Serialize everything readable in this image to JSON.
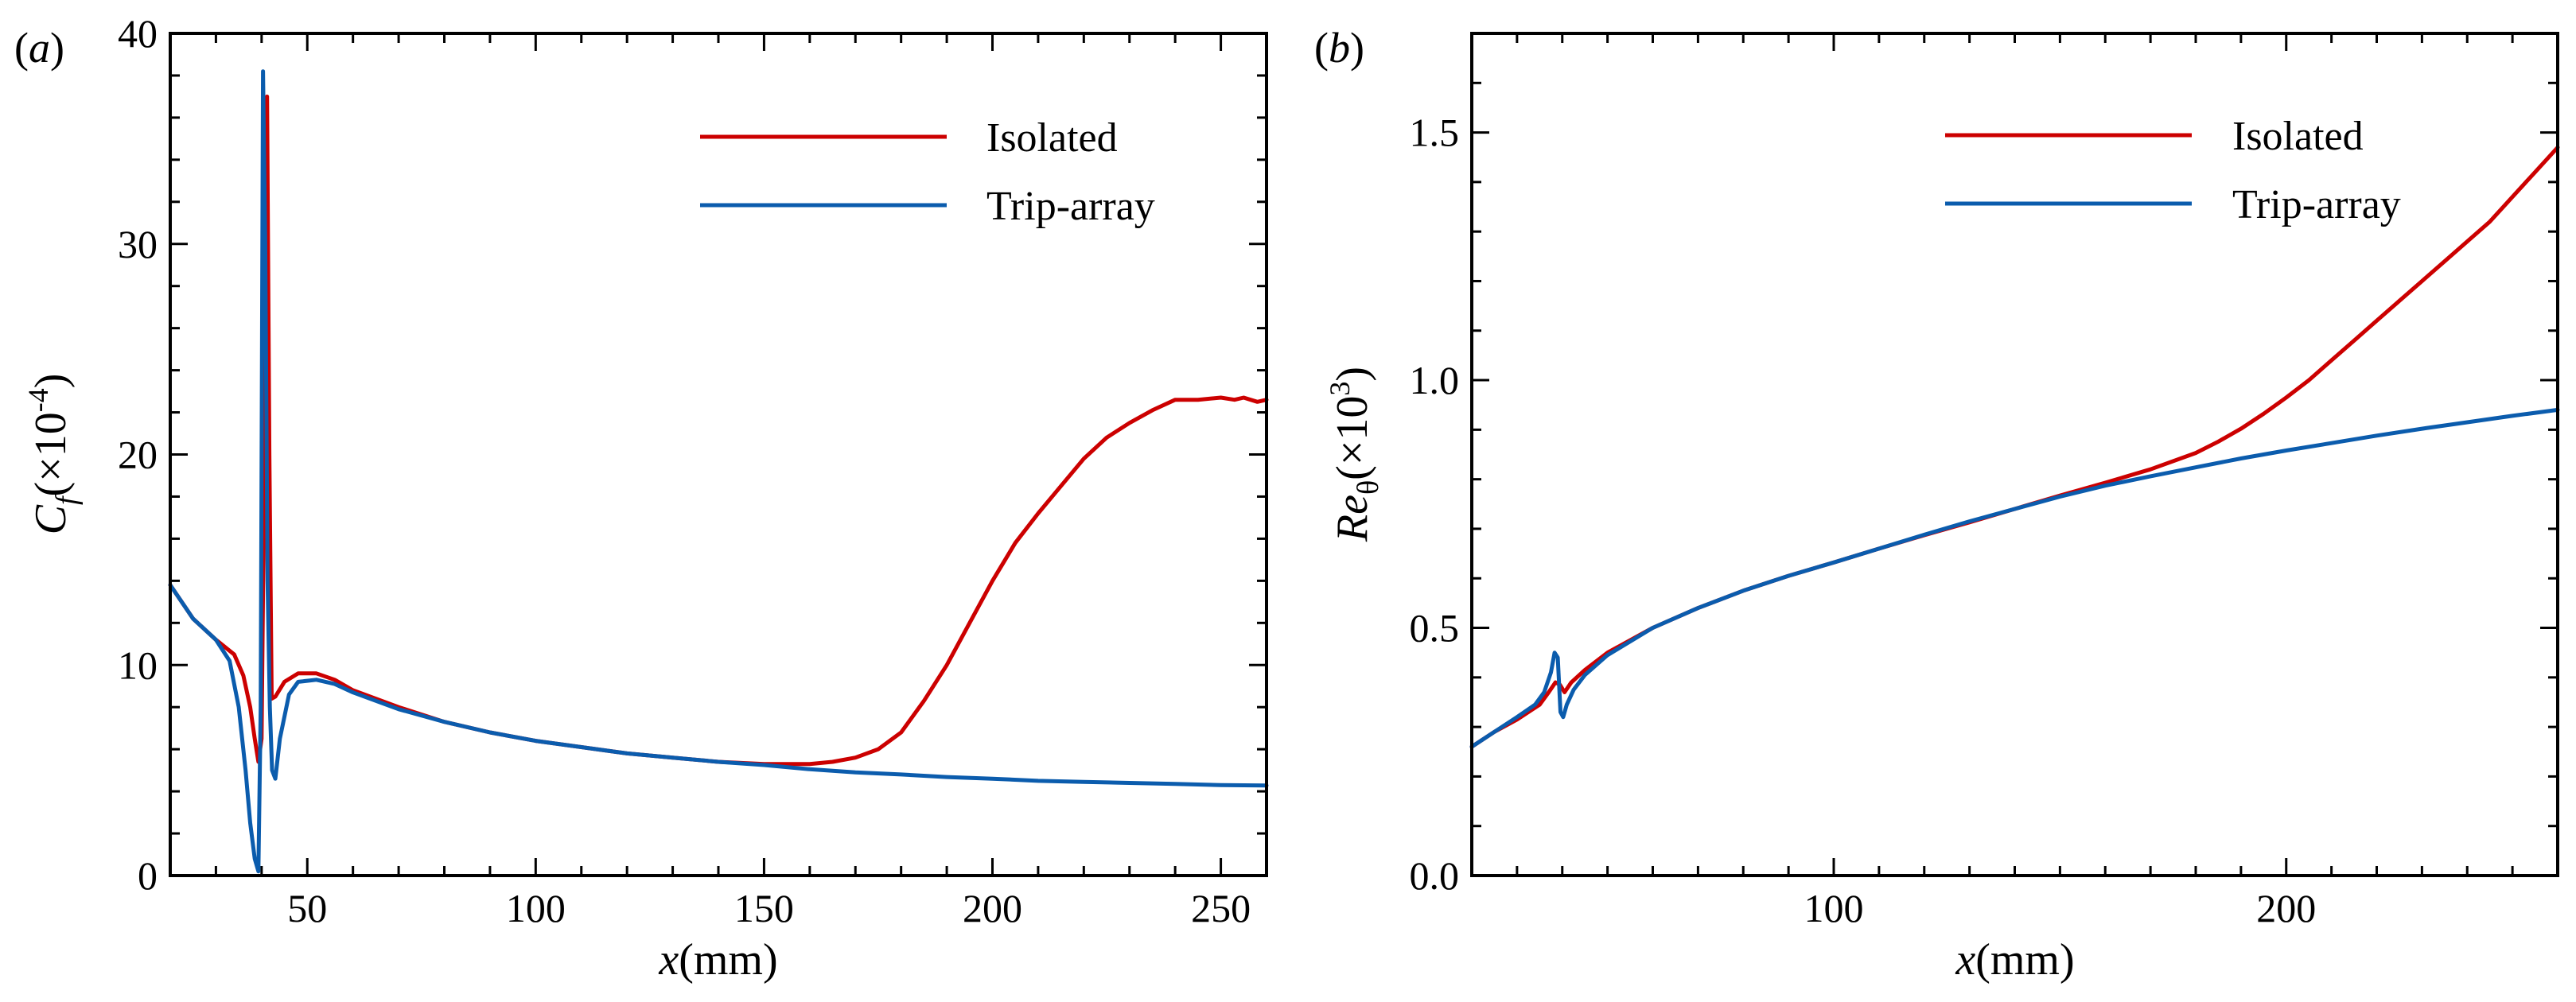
{
  "colors": {
    "isolated": "#cc0000",
    "trip_array": "#0b5cad",
    "axes": "#000000"
  },
  "chart_data": [
    {
      "type": "line",
      "panel_label": "(a)",
      "panel_letter": "a",
      "xlabel": {
        "var": "x",
        "unit": "(mm)"
      },
      "ylabel": {
        "var": "C",
        "sub": "f",
        "scale": "(×10",
        "sup": "-4",
        "close": ")"
      },
      "xlim": [
        20,
        260
      ],
      "ylim": [
        0,
        40
      ],
      "xticks": [
        50,
        100,
        150,
        200,
        250
      ],
      "xtick_labels": [
        "50",
        "100",
        "150",
        "200",
        "250"
      ],
      "xminor": [
        30,
        40,
        60,
        70,
        80,
        90,
        110,
        120,
        130,
        140,
        160,
        170,
        180,
        190,
        210,
        220,
        230,
        240
      ],
      "yticks": [
        0,
        10,
        20,
        30,
        40
      ],
      "ytick_labels": [
        "0",
        "10",
        "20",
        "30",
        "40"
      ],
      "yminor": [
        2,
        4,
        6,
        8,
        12,
        14,
        16,
        18,
        22,
        24,
        26,
        28,
        32,
        34,
        36,
        38
      ],
      "legend": [
        "Isolated",
        "Trip-array"
      ],
      "legend_position": "top-right",
      "series": [
        {
          "name": "Isolated",
          "color_key": "isolated",
          "x": [
            20,
            25,
            30,
            34,
            36,
            37.5,
            38.5,
            39.3,
            40,
            40.6,
            41.2,
            41.7,
            42.2,
            43,
            45,
            48,
            52,
            56,
            60,
            70,
            80,
            90,
            100,
            110,
            120,
            130,
            140,
            150,
            160,
            165,
            170,
            175,
            180,
            185,
            190,
            195,
            200,
            205,
            210,
            215,
            220,
            225,
            230,
            235,
            240,
            245,
            250,
            253,
            255,
            258,
            260
          ],
          "y": [
            13.8,
            12.2,
            11.2,
            10.5,
            9.5,
            8.0,
            6.5,
            5.4,
            6.5,
            20,
            37.0,
            20,
            8.4,
            8.5,
            9.2,
            9.6,
            9.6,
            9.3,
            8.8,
            8.0,
            7.3,
            6.8,
            6.4,
            6.1,
            5.8,
            5.6,
            5.4,
            5.3,
            5.3,
            5.4,
            5.6,
            6.0,
            6.8,
            8.3,
            10.0,
            12.0,
            14.0,
            15.8,
            17.2,
            18.5,
            19.8,
            20.8,
            21.5,
            22.1,
            22.6,
            22.6,
            22.7,
            22.6,
            22.7,
            22.5,
            22.6
          ]
        },
        {
          "name": "Trip-array",
          "color_key": "trip_array",
          "x": [
            20,
            25,
            30,
            33,
            35,
            36.5,
            37.5,
            38.5,
            39.3,
            39.8,
            40.3,
            40.8,
            41.3,
            41.8,
            42.3,
            43,
            44,
            46,
            48,
            52,
            56,
            60,
            70,
            80,
            90,
            100,
            110,
            120,
            130,
            140,
            150,
            160,
            170,
            180,
            190,
            200,
            210,
            220,
            230,
            240,
            250,
            260
          ],
          "y": [
            13.8,
            12.2,
            11.2,
            10.2,
            8.0,
            5.0,
            2.5,
            0.8,
            0.2,
            8.0,
            38.2,
            30,
            14.0,
            8.0,
            5.0,
            4.6,
            6.5,
            8.6,
            9.2,
            9.3,
            9.1,
            8.7,
            7.9,
            7.3,
            6.8,
            6.4,
            6.1,
            5.8,
            5.6,
            5.4,
            5.25,
            5.05,
            4.9,
            4.8,
            4.68,
            4.6,
            4.5,
            4.45,
            4.4,
            4.35,
            4.3,
            4.28
          ]
        }
      ]
    },
    {
      "type": "line",
      "panel_label": "(b)",
      "panel_letter": "b",
      "xlabel": {
        "var": "x",
        "unit": "(mm)"
      },
      "ylabel": {
        "var": "Re",
        "sub": "θ",
        "scale": "(×10",
        "sup": "3",
        "close": ")"
      },
      "xlim": [
        20,
        260
      ],
      "ylim": [
        0,
        1.7
      ],
      "xticks": [
        100,
        200
      ],
      "xtick_labels": [
        "100",
        "200"
      ],
      "xminor": [
        30,
        40,
        50,
        60,
        70,
        80,
        90,
        110,
        120,
        130,
        140,
        150,
        160,
        170,
        180,
        190,
        210,
        220,
        230,
        240,
        250
      ],
      "yticks": [
        0.0,
        0.5,
        1.0,
        1.5
      ],
      "ytick_labels": [
        "0.0",
        "0.5",
        "1.0",
        "1.5"
      ],
      "yminor": [
        0.1,
        0.2,
        0.3,
        0.4,
        0.6,
        0.7,
        0.8,
        0.9,
        1.1,
        1.2,
        1.3,
        1.4,
        1.6,
        1.7
      ],
      "legend": [
        "Isolated",
        "Trip-array"
      ],
      "legend_position": "top-right",
      "series": [
        {
          "name": "Isolated",
          "color_key": "isolated",
          "x": [
            20,
            25,
            30,
            35,
            37,
            38.5,
            39.5,
            40.5,
            42,
            45,
            50,
            60,
            70,
            80,
            90,
            100,
            110,
            120,
            130,
            140,
            150,
            160,
            170,
            180,
            185,
            190,
            195,
            200,
            205,
            210,
            215,
            220,
            225,
            230,
            235,
            240,
            245,
            250,
            255,
            260
          ],
          "y": [
            0.26,
            0.29,
            0.315,
            0.345,
            0.37,
            0.39,
            0.385,
            0.37,
            0.39,
            0.415,
            0.45,
            0.5,
            0.54,
            0.575,
            0.605,
            0.632,
            0.66,
            0.687,
            0.713,
            0.74,
            0.767,
            0.793,
            0.82,
            0.853,
            0.876,
            0.902,
            0.932,
            0.965,
            1.0,
            1.04,
            1.08,
            1.12,
            1.16,
            1.2,
            1.24,
            1.28,
            1.32,
            1.37,
            1.42,
            1.47
          ]
        },
        {
          "name": "Trip-array",
          "color_key": "trip_array",
          "x": [
            20,
            25,
            30,
            34,
            36,
            37.5,
            38.3,
            39.0,
            39.6,
            40.2,
            41,
            42.5,
            45,
            50,
            60,
            70,
            80,
            90,
            100,
            110,
            120,
            130,
            140,
            150,
            160,
            170,
            180,
            190,
            200,
            210,
            220,
            230,
            240,
            250,
            260
          ],
          "y": [
            0.26,
            0.29,
            0.32,
            0.345,
            0.37,
            0.41,
            0.45,
            0.44,
            0.33,
            0.32,
            0.345,
            0.375,
            0.405,
            0.445,
            0.5,
            0.54,
            0.575,
            0.605,
            0.632,
            0.66,
            0.688,
            0.715,
            0.74,
            0.765,
            0.787,
            0.806,
            0.824,
            0.842,
            0.858,
            0.873,
            0.888,
            0.902,
            0.915,
            0.928,
            0.94
          ]
        }
      ]
    }
  ]
}
